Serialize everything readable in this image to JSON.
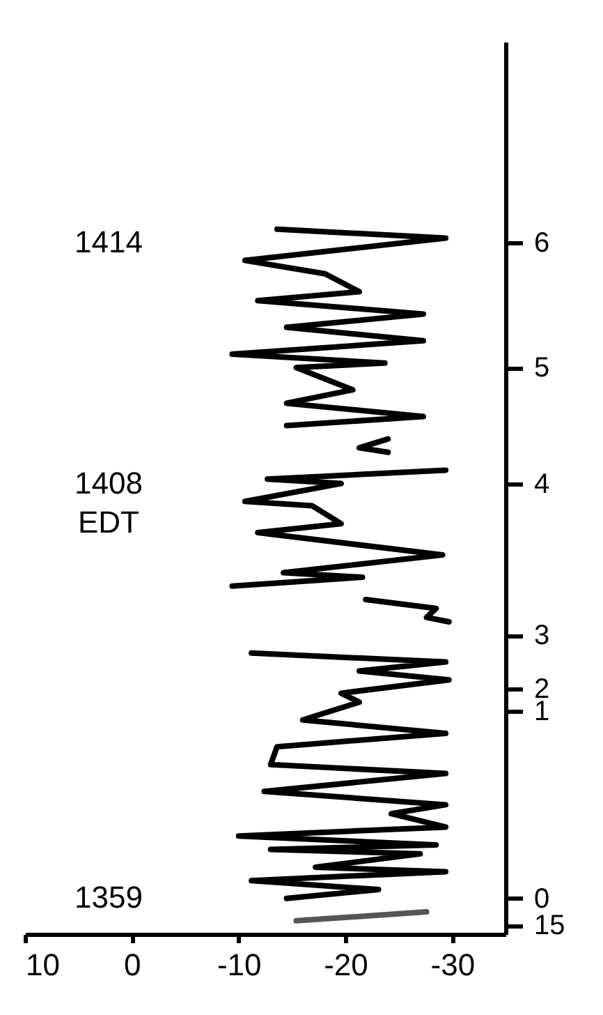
{
  "chart_data": {
    "type": "line",
    "orientation": "horizontal",
    "xlim": [
      10,
      -35
    ],
    "xticks": [
      10,
      0,
      -10,
      -20,
      -30
    ],
    "grid": false,
    "marker": "none",
    "line_style": "solid",
    "annotations": [
      "1414",
      "1408\nEDT",
      "1359"
    ],
    "categories": [
      null,
      null,
      null,
      null,
      null,
      null,
      null,
      null,
      null,
      null,
      null,
      null,
      null,
      null,
      null,
      null,
      null,
      null,
      null,
      null,
      null,
      null,
      null,
      null,
      null,
      null,
      null,
      null,
      null,
      null,
      null,
      null,
      null,
      null,
      null,
      null,
      null,
      null,
      null,
      null,
      null,
      null,
      null,
      null,
      null,
      "6",
      null,
      null,
      null,
      null,
      null,
      null,
      null,
      null,
      null,
      null,
      null,
      null,
      null,
      null,
      null,
      null,
      null,
      null,
      null,
      null,
      null,
      null,
      null,
      null,
      null,
      null,
      null,
      "5",
      null,
      null,
      null,
      null,
      null,
      null,
      null,
      null,
      null,
      null,
      null,
      null,
      null,
      null,
      null,
      null,
      null,
      null,
      null,
      null,
      null,
      null,
      null,
      null,
      null,
      "4",
      null,
      null,
      null,
      null,
      null,
      null,
      null,
      null,
      null,
      null,
      null,
      null,
      null,
      null,
      null,
      null,
      null,
      null,
      null,
      null,
      null,
      null,
      null,
      null,
      null,
      null,
      null,
      null,
      null,
      null,
      null,
      null,
      null,
      "3",
      null,
      null,
      null,
      null,
      null,
      null,
      null,
      null,
      null,
      null,
      null,
      "2",
      null,
      null,
      null,
      null,
      "1",
      null,
      null,
      null,
      null,
      null,
      null,
      null,
      null,
      null,
      null,
      null,
      null,
      null,
      null,
      null,
      null,
      null,
      null,
      null,
      null,
      null,
      null,
      null,
      null,
      null,
      null,
      null,
      null,
      null,
      null,
      null,
      null,
      null,
      null,
      null,
      null,
      null,
      null,
      null,
      null,
      null,
      "0",
      null,
      null,
      null,
      null,
      null,
      "15",
      null,
      null
    ],
    "series": [
      {
        "color": "#555555",
        "values": [
          null,
          null,
          null,
          null,
          null,
          null,
          null,
          null,
          null,
          null,
          null,
          null,
          null,
          null,
          null,
          null,
          null,
          null,
          null,
          null,
          null,
          null,
          null,
          null,
          null,
          null,
          null,
          null,
          null,
          null,
          null,
          null,
          null,
          null,
          null,
          null,
          null,
          null,
          null,
          null,
          null,
          null,
          null,
          null,
          null,
          null,
          null,
          null,
          null,
          null,
          null,
          null,
          null,
          null,
          null,
          null,
          null,
          null,
          null,
          null,
          null,
          null,
          null,
          null,
          null,
          null,
          null,
          null,
          null,
          null,
          null,
          null,
          null,
          null,
          null,
          null,
          null,
          null,
          null,
          null,
          null,
          null,
          null,
          null,
          null,
          null,
          null,
          null,
          null,
          null,
          null,
          null,
          null,
          null,
          null,
          null,
          null,
          null,
          null,
          null,
          null,
          null,
          null,
          null,
          null,
          null,
          null,
          null,
          null,
          null,
          null,
          null,
          null,
          null,
          null,
          null,
          null,
          null,
          null,
          null,
          null,
          null,
          null,
          null,
          null,
          null,
          null,
          null,
          null,
          null,
          null,
          null,
          null,
          null,
          null,
          null,
          null,
          null,
          null,
          null,
          null,
          null,
          null,
          null,
          null,
          null,
          null,
          null,
          null,
          null,
          null,
          null,
          null,
          null,
          null,
          null,
          null,
          null,
          null,
          null,
          null,
          null,
          null,
          null,
          null,
          null,
          null,
          null,
          null,
          null,
          null,
          null,
          null,
          null,
          null,
          null,
          null,
          null,
          null,
          null,
          null,
          null,
          null,
          null,
          null,
          null,
          null,
          null,
          null,
          null,
          null,
          null,
          null,
          null,
          null,
          -27.6,
          null,
          -15.4,
          null,
          null,
          null
        ]
      },
      {
        "color": "#000000",
        "values": [
          null,
          null,
          null,
          null,
          null,
          null,
          null,
          null,
          null,
          null,
          null,
          null,
          null,
          null,
          null,
          null,
          null,
          null,
          null,
          null,
          null,
          null,
          null,
          null,
          null,
          null,
          null,
          null,
          null,
          null,
          null,
          null,
          null,
          null,
          null,
          null,
          null,
          null,
          null,
          null,
          null,
          null,
          null,
          null,
          null,
          null,
          null,
          null,
          null,
          null,
          null,
          null,
          null,
          null,
          null,
          null,
          null,
          null,
          null,
          null,
          null,
          null,
          null,
          null,
          null,
          null,
          null,
          null,
          null,
          null,
          null,
          null,
          null,
          null,
          null,
          null,
          null,
          null,
          null,
          null,
          null,
          null,
          null,
          null,
          null,
          null,
          null,
          null,
          null,
          null,
          null,
          null,
          null,
          null,
          null,
          null,
          null,
          null,
          null,
          null,
          null,
          null,
          null,
          null,
          null,
          null,
          null,
          null,
          null,
          null,
          null,
          null,
          null,
          null,
          null,
          null,
          null,
          null,
          null,
          null,
          null,
          null,
          null,
          null,
          null,
          null,
          null,
          null,
          null,
          null,
          null,
          null,
          null,
          null,
          null,
          null,
          null,
          -11.2,
          null,
          -29.4,
          null,
          -21.3,
          null,
          -29.7,
          null,
          null,
          -19.6,
          null,
          -21.3,
          null,
          null,
          null,
          -16.0,
          null,
          null,
          -29.4,
          null,
          null,
          -13.6,
          null,
          null,
          null,
          -13.0,
          null,
          -29.4,
          null,
          null,
          null,
          -12.4,
          null,
          null,
          -29.4,
          null,
          -24.3,
          null,
          null,
          -29.4,
          null,
          -10.0,
          null,
          -28.5,
          -13.0,
          -27.0,
          null,
          null,
          -17.2,
          -29.4,
          null,
          -11.2,
          null,
          -23.1,
          null,
          -14.5,
          null,
          null,
          null,
          null,
          null,
          null,
          null,
          null
        ]
      },
      {
        "color": "#000000",
        "values": [
          null,
          null,
          null,
          null,
          null,
          null,
          null,
          null,
          null,
          null,
          null,
          null,
          null,
          null,
          null,
          null,
          null,
          null,
          null,
          null,
          null,
          null,
          null,
          null,
          null,
          null,
          null,
          null,
          null,
          null,
          null,
          null,
          null,
          null,
          null,
          null,
          null,
          null,
          null,
          null,
          null,
          null,
          null,
          null,
          null,
          null,
          null,
          null,
          null,
          null,
          null,
          null,
          null,
          null,
          null,
          null,
          null,
          null,
          null,
          null,
          null,
          null,
          null,
          null,
          null,
          null,
          null,
          null,
          null,
          null,
          null,
          null,
          null,
          null,
          null,
          null,
          null,
          null,
          null,
          null,
          null,
          null,
          null,
          null,
          null,
          null,
          null,
          null,
          null,
          null,
          null,
          null,
          null,
          null,
          null,
          null,
          null,
          null,
          null,
          null,
          null,
          null,
          null,
          null,
          null,
          null,
          null,
          null,
          null,
          null,
          null,
          null,
          null,
          null,
          null,
          null,
          null,
          null,
          null,
          null,
          null,
          null,
          null,
          null,
          null,
          -21.9,
          null,
          -28.5,
          null,
          -27.6,
          -29.7,
          null,
          null,
          null,
          null,
          null,
          null,
          null,
          null,
          null,
          null,
          null,
          null,
          null,
          null,
          null,
          null,
          null,
          null,
          null,
          null,
          null,
          null,
          null,
          null,
          null,
          null,
          null,
          null,
          null,
          null,
          null,
          null,
          null,
          null,
          null,
          null,
          null,
          null,
          null,
          null,
          null,
          null,
          null,
          null,
          null,
          null,
          null,
          null,
          null,
          null,
          null,
          null,
          null,
          null,
          null,
          null,
          null,
          null,
          null,
          null,
          null,
          null,
          null,
          null,
          null,
          null,
          null,
          null,
          null,
          null
        ]
      },
      {
        "color": "#000000",
        "values": [
          null,
          null,
          null,
          null,
          null,
          null,
          null,
          null,
          null,
          null,
          null,
          null,
          null,
          null,
          null,
          null,
          null,
          null,
          null,
          null,
          null,
          null,
          null,
          null,
          null,
          null,
          null,
          null,
          null,
          null,
          null,
          null,
          null,
          null,
          null,
          null,
          null,
          null,
          null,
          null,
          null,
          null,
          null,
          null,
          null,
          null,
          null,
          null,
          null,
          null,
          null,
          null,
          null,
          null,
          null,
          null,
          null,
          null,
          null,
          null,
          null,
          null,
          null,
          null,
          null,
          null,
          null,
          null,
          null,
          null,
          null,
          null,
          null,
          null,
          null,
          null,
          null,
          null,
          null,
          null,
          null,
          null,
          null,
          null,
          null,
          null,
          null,
          null,
          null,
          null,
          null,
          null,
          null,
          null,
          null,
          null,
          -29.4,
          null,
          -12.7,
          -19.6,
          null,
          null,
          null,
          -10.6,
          -16.9,
          null,
          null,
          null,
          -19.6,
          null,
          -11.8,
          null,
          null,
          null,
          null,
          -29.1,
          null,
          null,
          null,
          -14.2,
          -21.6,
          null,
          -9.4,
          null,
          null,
          null,
          null,
          null,
          null,
          null,
          null,
          null,
          null,
          null,
          null,
          null,
          null,
          null,
          null,
          null,
          null,
          null,
          null,
          null,
          null,
          null,
          null,
          null,
          null,
          null,
          null,
          null,
          null,
          null,
          null,
          null,
          null,
          null,
          null,
          null,
          null,
          null,
          null,
          null,
          null,
          null,
          null,
          null,
          null,
          null,
          null,
          null,
          null,
          null,
          null,
          null,
          null,
          null,
          null,
          null,
          null,
          null,
          null,
          null,
          null,
          null,
          null,
          null,
          null,
          null,
          null,
          null,
          null,
          null,
          null,
          null,
          null,
          null,
          null,
          null,
          null
        ]
      },
      {
        "color": "#000000",
        "values": [
          null,
          null,
          null,
          null,
          null,
          null,
          null,
          null,
          null,
          null,
          null,
          null,
          null,
          null,
          null,
          null,
          null,
          null,
          null,
          null,
          null,
          null,
          null,
          null,
          null,
          null,
          null,
          null,
          null,
          null,
          null,
          null,
          null,
          null,
          null,
          null,
          null,
          null,
          null,
          null,
          null,
          null,
          null,
          null,
          null,
          null,
          null,
          null,
          null,
          null,
          null,
          null,
          null,
          null,
          null,
          null,
          null,
          null,
          null,
          null,
          null,
          null,
          null,
          null,
          null,
          null,
          null,
          null,
          null,
          null,
          null,
          null,
          null,
          null,
          null,
          null,
          null,
          null,
          null,
          null,
          null,
          null,
          null,
          null,
          null,
          null,
          null,
          null,
          null,
          -24.0,
          null,
          -21.3,
          -24.0,
          null,
          null,
          null,
          null,
          null,
          null,
          null,
          null,
          null,
          null,
          null,
          null,
          null,
          null,
          null,
          null,
          null,
          null,
          null,
          null,
          null,
          null,
          null,
          null,
          null,
          null,
          null,
          null,
          null,
          null,
          null,
          null,
          null,
          null,
          null,
          null,
          null,
          null,
          null,
          null,
          null,
          null,
          null,
          null,
          null,
          null,
          null,
          null,
          null,
          null,
          null,
          null,
          null,
          null,
          null,
          null,
          null,
          null,
          null,
          null,
          null,
          null,
          null,
          null,
          null,
          null,
          null,
          null,
          null,
          null,
          null,
          null,
          null,
          null,
          null,
          null,
          null,
          null,
          null,
          null,
          null,
          null,
          null,
          null,
          null,
          null,
          null,
          null,
          null,
          null,
          null,
          null,
          null,
          null,
          null,
          null,
          null,
          null,
          null,
          null,
          null,
          null,
          null,
          null,
          null,
          null,
          null,
          null
        ]
      },
      {
        "color": "#000000",
        "values": [
          null,
          null,
          null,
          null,
          null,
          null,
          null,
          null,
          null,
          null,
          null,
          null,
          null,
          null,
          null,
          null,
          null,
          null,
          null,
          null,
          null,
          null,
          null,
          null,
          null,
          null,
          null,
          null,
          null,
          null,
          null,
          null,
          null,
          null,
          null,
          null,
          null,
          null,
          null,
          null,
          null,
          null,
          -13.6,
          null,
          -29.4,
          null,
          null,
          null,
          null,
          -10.6,
          null,
          null,
          -18.1,
          null,
          null,
          null,
          -21.3,
          null,
          -11.8,
          null,
          null,
          -27.3,
          null,
          null,
          -14.5,
          null,
          null,
          -27.3,
          null,
          null,
          -9.4,
          null,
          -23.7,
          -15.4,
          null,
          null,
          null,
          null,
          -20.7,
          null,
          null,
          -14.5,
          null,
          null,
          -27.3,
          null,
          -14.5,
          null,
          null,
          null,
          null,
          null,
          null,
          null,
          null,
          null,
          null,
          null,
          null,
          null,
          null,
          null,
          null,
          null,
          null,
          null,
          null,
          null,
          null,
          null,
          null,
          null,
          null,
          null,
          null,
          null,
          null,
          null,
          null,
          null,
          null,
          null,
          null,
          null,
          null,
          null,
          null,
          null,
          null,
          null,
          null,
          null,
          null,
          null,
          null,
          null,
          null,
          null,
          null,
          null,
          null,
          null,
          null,
          null,
          null,
          null,
          null,
          null,
          null,
          null,
          null,
          null,
          null,
          null,
          null,
          null,
          null,
          null,
          null,
          null,
          null,
          null,
          null,
          null,
          null,
          null,
          null,
          null,
          null,
          null,
          null,
          null,
          null,
          null,
          null,
          null,
          null,
          null,
          null,
          null,
          null,
          null,
          null,
          null,
          null,
          null,
          null,
          null,
          null,
          null,
          null,
          null,
          null,
          null,
          null,
          null,
          null,
          null,
          null,
          null,
          null
        ]
      }
    ]
  }
}
